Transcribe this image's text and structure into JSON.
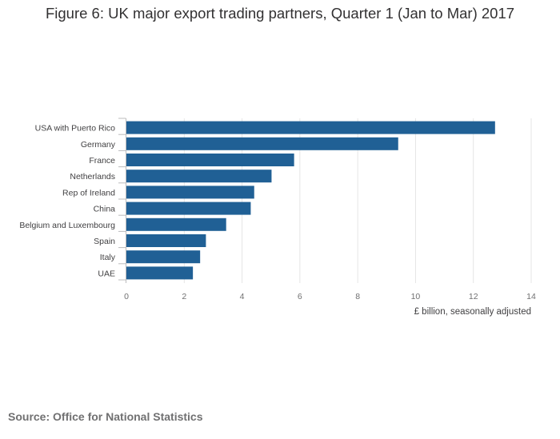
{
  "chart_data": {
    "type": "bar",
    "orientation": "horizontal",
    "title": "Figure 6: UK major export trading partners, Quarter 1 (Jan to Mar) 2017",
    "categories": [
      "USA with Puerto Rico",
      "Germany",
      "France",
      "Netherlands",
      "Rep of Ireland",
      "China",
      "Belgium and Luxembourg",
      "Spain",
      "Italy",
      "UAE"
    ],
    "values": [
      12.75,
      9.4,
      5.8,
      5.02,
      4.42,
      4.3,
      3.45,
      2.75,
      2.55,
      2.3
    ],
    "xlabel": "£ billion, seasonally adjusted",
    "ylabel": "",
    "xlim": [
      0,
      14
    ],
    "xticks": [
      "0",
      "2",
      "4",
      "6",
      "8",
      "10",
      "12",
      "14"
    ],
    "grid": true,
    "bar_color": "#206095",
    "source": "Source: Office for National Statistics"
  }
}
